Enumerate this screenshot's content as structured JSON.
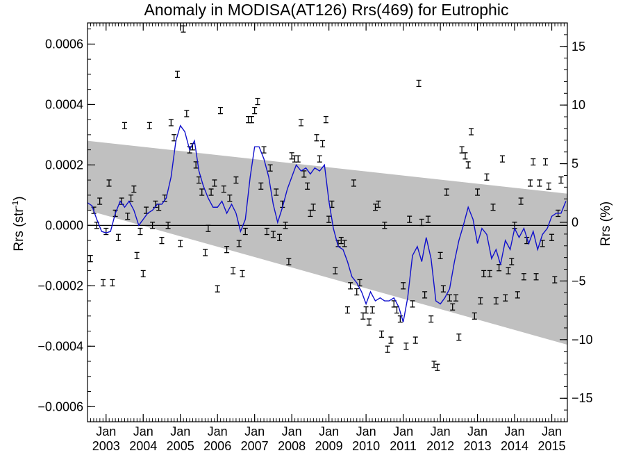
{
  "chart_data": {
    "type": "scatter",
    "title": "Anomaly in MODISA(AT126) Rrs(469) for Eutrophic",
    "ylabel_left": "Rrs (str",
    "ylabel_left_sup": "-1",
    "ylabel_left_end": ")",
    "ylabel_right": "Rrs (%)",
    "xlim": [
      2002.5,
      2015.42
    ],
    "ylim": [
      -0.00065,
      0.00067
    ],
    "ylim_right_percent": [
      -17.0,
      17.0
    ],
    "y_ticks": [
      {
        "value": 0.0006,
        "label": "0.0006"
      },
      {
        "value": 0.0004,
        "label": "0.0004"
      },
      {
        "value": 0.0002,
        "label": "0.0002"
      },
      {
        "value": 0.0,
        "label": "0.0000"
      },
      {
        "value": -0.0002,
        "label": "−0.0002"
      },
      {
        "value": -0.0004,
        "label": "−0.0004"
      },
      {
        "value": -0.0006,
        "label": "−0.0006"
      }
    ],
    "y_right_ticks": [
      {
        "value": 15,
        "label": "15"
      },
      {
        "value": 10,
        "label": "10"
      },
      {
        "value": 5,
        "label": "5"
      },
      {
        "value": 0,
        "label": "0"
      },
      {
        "value": -5,
        "label": "−5"
      },
      {
        "value": -10,
        "label": "−10"
      },
      {
        "value": -15,
        "label": "−15"
      }
    ],
    "x_ticks": [
      {
        "value": 2003.0,
        "top": "Jan",
        "bottom": "2003"
      },
      {
        "value": 2004.0,
        "top": "Jan",
        "bottom": "2004"
      },
      {
        "value": 2005.0,
        "top": "Jan",
        "bottom": "2005"
      },
      {
        "value": 2006.0,
        "top": "Jan",
        "bottom": "2006"
      },
      {
        "value": 2007.0,
        "top": "Jan",
        "bottom": "2007"
      },
      {
        "value": 2008.0,
        "top": "Jan",
        "bottom": "2008"
      },
      {
        "value": 2009.0,
        "top": "Jan",
        "bottom": "2009"
      },
      {
        "value": 2010.0,
        "top": "Jan",
        "bottom": "2010"
      },
      {
        "value": 2011.0,
        "top": "Jan",
        "bottom": "2011"
      },
      {
        "value": 2012.0,
        "top": "Jan",
        "bottom": "2012"
      },
      {
        "value": 2013.0,
        "top": "Jan",
        "bottom": "2013"
      },
      {
        "value": 2014.0,
        "top": "Jan",
        "bottom": "2014"
      },
      {
        "value": 2015.0,
        "top": "Jan",
        "bottom": "2015"
      }
    ],
    "zero_line": 0.0,
    "trend_band": {
      "upper": [
        [
          2002.5,
          0.00028
        ],
        [
          2015.42,
          0.000105
        ]
      ],
      "lower": [
        [
          2002.5,
          5e-05
        ],
        [
          2015.42,
          -0.000395
        ]
      ],
      "color": "#c0c0c0"
    },
    "points": [
      {
        "x": 2002.58,
        "y": -0.00011
      },
      {
        "x": 2002.67,
        "y": 5e-05
      },
      {
        "x": 2002.75,
        "y": 0.0
      },
      {
        "x": 2002.83,
        "y": 8e-05
      },
      {
        "x": 2002.92,
        "y": -0.00019
      },
      {
        "x": 2003.0,
        "y": -2e-05
      },
      {
        "x": 2003.08,
        "y": 0.00014
      },
      {
        "x": 2003.17,
        "y": -0.00019
      },
      {
        "x": 2003.25,
        "y": 4e-05
      },
      {
        "x": 2003.33,
        "y": -4e-05
      },
      {
        "x": 2003.42,
        "y": 8e-05
      },
      {
        "x": 2003.5,
        "y": 0.00033
      },
      {
        "x": 2003.58,
        "y": 3e-05
      },
      {
        "x": 2003.67,
        "y": 9e-05
      },
      {
        "x": 2003.75,
        "y": 0.00012
      },
      {
        "x": 2003.83,
        "y": -0.0001
      },
      {
        "x": 2003.92,
        "y": -2e-05
      },
      {
        "x": 2004.0,
        "y": -0.00016
      },
      {
        "x": 2004.08,
        "y": 5e-05
      },
      {
        "x": 2004.17,
        "y": 0.00033
      },
      {
        "x": 2004.25,
        "y": 0.0
      },
      {
        "x": 2004.33,
        "y": 7e-05
      },
      {
        "x": 2004.42,
        "y": 6e-05
      },
      {
        "x": 2004.5,
        "y": -5e-05
      },
      {
        "x": 2004.58,
        "y": 9e-05
      },
      {
        "x": 2004.67,
        "y": 0.0
      },
      {
        "x": 2004.75,
        "y": 0.00034
      },
      {
        "x": 2004.83,
        "y": 0.00029
      },
      {
        "x": 2004.92,
        "y": 0.0005
      },
      {
        "x": 2005.0,
        "y": -6e-05
      },
      {
        "x": 2005.08,
        "y": 0.00065
      },
      {
        "x": 2005.17,
        "y": 0.00037
      },
      {
        "x": 2005.25,
        "y": 0.00025
      },
      {
        "x": 2005.33,
        "y": 0.00026
      },
      {
        "x": 2005.42,
        "y": 0.0002
      },
      {
        "x": 2005.5,
        "y": 0.00015
      },
      {
        "x": 2005.58,
        "y": 0.00011
      },
      {
        "x": 2005.67,
        "y": -9e-05
      },
      {
        "x": 2005.75,
        "y": -1e-05
      },
      {
        "x": 2005.83,
        "y": 0.00011
      },
      {
        "x": 2005.92,
        "y": 0.00014
      },
      {
        "x": 2006.0,
        "y": -0.00021
      },
      {
        "x": 2006.08,
        "y": 0.00038
      },
      {
        "x": 2006.17,
        "y": 0.00012
      },
      {
        "x": 2006.25,
        "y": -8e-05
      },
      {
        "x": 2006.33,
        "y": 9e-05
      },
      {
        "x": 2006.42,
        "y": -0.00015
      },
      {
        "x": 2006.5,
        "y": 0.00015
      },
      {
        "x": 2006.58,
        "y": -6e-05
      },
      {
        "x": 2006.67,
        "y": -0.00016
      },
      {
        "x": 2006.75,
        "y": -2e-05
      },
      {
        "x": 2006.83,
        "y": 0.00035
      },
      {
        "x": 2006.92,
        "y": 0.00035
      },
      {
        "x": 2007.0,
        "y": 0.00038
      },
      {
        "x": 2007.08,
        "y": 0.00041
      },
      {
        "x": 2007.17,
        "y": 0.00013
      },
      {
        "x": 2007.25,
        "y": 0.00025
      },
      {
        "x": 2007.33,
        "y": -2e-05
      },
      {
        "x": 2007.42,
        "y": 0.00019
      },
      {
        "x": 2007.5,
        "y": -3e-05
      },
      {
        "x": 2007.58,
        "y": 0.00011
      },
      {
        "x": 2007.67,
        "y": -4e-05
      },
      {
        "x": 2007.75,
        "y": 7e-05
      },
      {
        "x": 2007.83,
        "y": 0.0
      },
      {
        "x": 2007.92,
        "y": -0.00012
      },
      {
        "x": 2008.0,
        "y": 0.00023
      },
      {
        "x": 2008.08,
        "y": 0.00022
      },
      {
        "x": 2008.17,
        "y": 0.00022
      },
      {
        "x": 2008.25,
        "y": 0.00034
      },
      {
        "x": 2008.33,
        "y": 0.00017
      },
      {
        "x": 2008.42,
        "y": 0.00013
      },
      {
        "x": 2008.5,
        "y": 4e-05
      },
      {
        "x": 2008.58,
        "y": 6e-05
      },
      {
        "x": 2008.67,
        "y": 0.00029
      },
      {
        "x": 2008.75,
        "y": 0.00022
      },
      {
        "x": 2008.83,
        "y": 0.00027
      },
      {
        "x": 2008.92,
        "y": 0.00035
      },
      {
        "x": 2009.0,
        "y": 2e-05
      },
      {
        "x": 2009.08,
        "y": 7e-05
      },
      {
        "x": 2009.17,
        "y": -0.00015
      },
      {
        "x": 2009.25,
        "y": -6e-05
      },
      {
        "x": 2009.33,
        "y": -5e-05
      },
      {
        "x": 2009.42,
        "y": -6e-05
      },
      {
        "x": 2009.5,
        "y": -0.00028
      },
      {
        "x": 2009.58,
        "y": -0.0002
      },
      {
        "x": 2009.67,
        "y": 0.00014
      },
      {
        "x": 2009.75,
        "y": -0.00022
      },
      {
        "x": 2009.83,
        "y": -0.00019
      },
      {
        "x": 2009.92,
        "y": -0.0003
      },
      {
        "x": 2010.0,
        "y": -0.00028
      },
      {
        "x": 2010.08,
        "y": -0.00032
      },
      {
        "x": 2010.17,
        "y": -0.00028
      },
      {
        "x": 2010.25,
        "y": 6e-05
      },
      {
        "x": 2010.33,
        "y": 7e-05
      },
      {
        "x": 2010.42,
        "y": -0.00036
      },
      {
        "x": 2010.5,
        "y": 0.0
      },
      {
        "x": 2010.58,
        "y": -0.00041
      },
      {
        "x": 2010.67,
        "y": -0.00038
      },
      {
        "x": 2010.75,
        "y": -0.00026
      },
      {
        "x": 2010.83,
        "y": -0.00028
      },
      {
        "x": 2010.92,
        "y": -0.00031
      },
      {
        "x": 2011.0,
        "y": -0.0002
      },
      {
        "x": 2011.08,
        "y": -0.0004
      },
      {
        "x": 2011.17,
        "y": 2e-05
      },
      {
        "x": 2011.25,
        "y": -0.00026
      },
      {
        "x": 2011.33,
        "y": -0.00038
      },
      {
        "x": 2011.42,
        "y": 0.00047
      },
      {
        "x": 2011.5,
        "y": 1e-05
      },
      {
        "x": 2011.58,
        "y": -0.00023
      },
      {
        "x": 2011.67,
        "y": 2e-05
      },
      {
        "x": 2011.75,
        "y": -0.00031
      },
      {
        "x": 2011.83,
        "y": -0.00046
      },
      {
        "x": 2011.92,
        "y": -0.00047
      },
      {
        "x": 2012.0,
        "y": -0.0001
      },
      {
        "x": 2012.08,
        "y": -0.00021
      },
      {
        "x": 2012.17,
        "y": 0.00011
      },
      {
        "x": 2012.25,
        "y": -0.00024
      },
      {
        "x": 2012.33,
        "y": -0.00027
      },
      {
        "x": 2012.42,
        "y": -0.00024
      },
      {
        "x": 2012.5,
        "y": -0.00037
      },
      {
        "x": 2012.58,
        "y": 0.00025
      },
      {
        "x": 2012.67,
        "y": 0.00023
      },
      {
        "x": 2012.75,
        "y": 0.0002
      },
      {
        "x": 2012.83,
        "y": 0.00031
      },
      {
        "x": 2012.92,
        "y": -0.0003
      },
      {
        "x": 2013.0,
        "y": 0.00011
      },
      {
        "x": 2013.08,
        "y": -0.00025
      },
      {
        "x": 2013.17,
        "y": -0.00016
      },
      {
        "x": 2013.25,
        "y": 0.00016
      },
      {
        "x": 2013.33,
        "y": -0.00016
      },
      {
        "x": 2013.42,
        "y": 6e-05
      },
      {
        "x": 2013.5,
        "y": -0.00025
      },
      {
        "x": 2013.58,
        "y": -0.00014
      },
      {
        "x": 2013.67,
        "y": 0.00022
      },
      {
        "x": 2013.75,
        "y": -0.00024
      },
      {
        "x": 2013.83,
        "y": -0.00015
      },
      {
        "x": 2013.92,
        "y": -0.00012
      },
      {
        "x": 2014.0,
        "y": 0.0
      },
      {
        "x": 2014.08,
        "y": -0.00023
      },
      {
        "x": 2014.17,
        "y": 8e-05
      },
      {
        "x": 2014.25,
        "y": -0.00017
      },
      {
        "x": 2014.33,
        "y": -5e-05
      },
      {
        "x": 2014.42,
        "y": 0.00014
      },
      {
        "x": 2014.5,
        "y": 0.00021
      },
      {
        "x": 2014.58,
        "y": -0.00017
      },
      {
        "x": 2014.67,
        "y": 0.00014
      },
      {
        "x": 2014.75,
        "y": -6e-05
      },
      {
        "x": 2014.83,
        "y": 0.00021
      },
      {
        "x": 2014.92,
        "y": 0.00013
      },
      {
        "x": 2015.0,
        "y": -4e-05
      },
      {
        "x": 2015.08,
        "y": -0.00018
      },
      {
        "x": 2015.17,
        "y": 4e-05
      },
      {
        "x": 2015.25,
        "y": 0.00015
      }
    ],
    "smoothed_line": {
      "color": "#1010cc",
      "points": [
        [
          2002.5,
          7.5e-05
        ],
        [
          2002.62,
          6.5e-05
        ],
        [
          2002.75,
          2e-05
        ],
        [
          2002.88,
          -2e-05
        ],
        [
          2003.0,
          -2.5e-05
        ],
        [
          2003.12,
          -2e-05
        ],
        [
          2003.25,
          4e-05
        ],
        [
          2003.38,
          8e-05
        ],
        [
          2003.5,
          6e-05
        ],
        [
          2003.62,
          8e-05
        ],
        [
          2003.75,
          5e-05
        ],
        [
          2003.88,
          0.0
        ],
        [
          2004.0,
          2e-05
        ],
        [
          2004.12,
          4e-05
        ],
        [
          2004.25,
          5e-05
        ],
        [
          2004.38,
          7e-05
        ],
        [
          2004.5,
          7e-05
        ],
        [
          2004.62,
          9e-05
        ],
        [
          2004.75,
          0.00016
        ],
        [
          2004.88,
          0.00028
        ],
        [
          2005.0,
          0.00033
        ],
        [
          2005.12,
          0.00031
        ],
        [
          2005.25,
          0.00025
        ],
        [
          2005.38,
          0.00028
        ],
        [
          2005.5,
          0.00018
        ],
        [
          2005.62,
          0.00013
        ],
        [
          2005.75,
          9e-05
        ],
        [
          2005.88,
          6e-05
        ],
        [
          2006.0,
          6e-05
        ],
        [
          2006.12,
          8e-05
        ],
        [
          2006.25,
          4e-05
        ],
        [
          2006.38,
          7e-05
        ],
        [
          2006.5,
          4e-05
        ],
        [
          2006.62,
          -2e-05
        ],
        [
          2006.75,
          2e-05
        ],
        [
          2006.88,
          0.00016
        ],
        [
          2007.0,
          0.00026
        ],
        [
          2007.12,
          0.00026
        ],
        [
          2007.25,
          0.00022
        ],
        [
          2007.38,
          0.00016
        ],
        [
          2007.5,
          7e-05
        ],
        [
          2007.62,
          1e-05
        ],
        [
          2007.75,
          6e-05
        ],
        [
          2007.88,
          0.00012
        ],
        [
          2008.0,
          0.00016
        ],
        [
          2008.12,
          0.0002
        ],
        [
          2008.25,
          0.00018
        ],
        [
          2008.38,
          0.00019
        ],
        [
          2008.5,
          0.00017
        ],
        [
          2008.62,
          0.00019
        ],
        [
          2008.75,
          0.00018
        ],
        [
          2008.88,
          0.0002
        ],
        [
          2009.0,
          8e-05
        ],
        [
          2009.12,
          -1e-05
        ],
        [
          2009.25,
          -7e-05
        ],
        [
          2009.38,
          -8e-05
        ],
        [
          2009.5,
          -0.00012
        ],
        [
          2009.62,
          -0.00017
        ],
        [
          2009.75,
          -0.00019
        ],
        [
          2009.88,
          -0.00022
        ],
        [
          2010.0,
          -0.00026
        ],
        [
          2010.12,
          -0.00022
        ],
        [
          2010.25,
          -0.00025
        ],
        [
          2010.38,
          -0.00024
        ],
        [
          2010.5,
          -0.00025
        ],
        [
          2010.62,
          -0.00025
        ],
        [
          2010.75,
          -0.00024
        ],
        [
          2010.88,
          -0.00027
        ],
        [
          2011.0,
          -0.00032
        ],
        [
          2011.12,
          -0.00024
        ],
        [
          2011.25,
          -0.0001
        ],
        [
          2011.38,
          -7e-05
        ],
        [
          2011.5,
          -0.00012
        ],
        [
          2011.62,
          -4e-05
        ],
        [
          2011.75,
          -0.00011
        ],
        [
          2011.88,
          -0.00025
        ],
        [
          2012.0,
          -0.00026
        ],
        [
          2012.12,
          -0.00024
        ],
        [
          2012.25,
          -0.00021
        ],
        [
          2012.38,
          -0.00012
        ],
        [
          2012.5,
          -5e-05
        ],
        [
          2012.62,
          0.0
        ],
        [
          2012.75,
          6e-05
        ],
        [
          2012.88,
          2e-05
        ],
        [
          2013.0,
          -6e-05
        ],
        [
          2013.12,
          -1e-05
        ],
        [
          2013.25,
          -3e-05
        ],
        [
          2013.38,
          -0.00011
        ],
        [
          2013.5,
          -8e-05
        ],
        [
          2013.62,
          -0.00013
        ],
        [
          2013.75,
          -5e-05
        ],
        [
          2013.88,
          -8e-05
        ],
        [
          2014.0,
          -1e-05
        ],
        [
          2014.12,
          -4e-05
        ],
        [
          2014.25,
          -1e-05
        ],
        [
          2014.38,
          -6e-05
        ],
        [
          2014.5,
          -2e-05
        ],
        [
          2014.62,
          -8e-05
        ],
        [
          2014.75,
          -3e-05
        ],
        [
          2014.88,
          -1e-05
        ],
        [
          2015.0,
          3e-05
        ],
        [
          2015.12,
          4e-05
        ],
        [
          2015.25,
          4e-05
        ],
        [
          2015.38,
          8e-05
        ]
      ]
    }
  }
}
